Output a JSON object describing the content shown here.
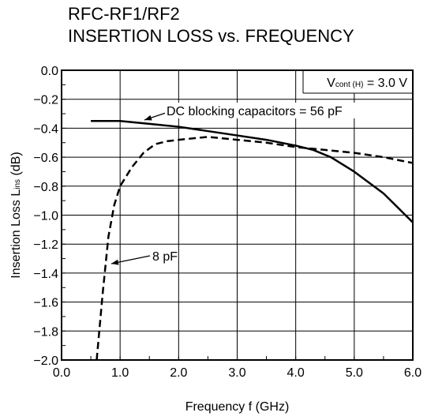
{
  "chart_data": {
    "type": "line",
    "title": "RFC-RF1/RF2",
    "subtitle": "INSERTION LOSS vs. FREQUENCY",
    "xlabel": "Frequency  f (GHz)",
    "ylabel": {
      "main": "Insertion Loss  L",
      "sub": "ins",
      "unit": " (dB)"
    },
    "xlim": [
      0.0,
      6.0
    ],
    "ylim": [
      -2.0,
      0.0
    ],
    "grid": true,
    "x_ticks": [
      "0.0",
      "1.0",
      "2.0",
      "3.0",
      "4.0",
      "5.0",
      "6.0"
    ],
    "y_ticks": [
      "0.0",
      "−0.2",
      "−0.4",
      "−0.6",
      "−0.8",
      "−1.0",
      "−1.2",
      "−1.4",
      "−1.6",
      "−1.8",
      "−2.0"
    ],
    "condition": {
      "main": "V",
      "sub": "cont (H)",
      "rest": " = 3.0 V"
    },
    "series": [
      {
        "name": "DC blocking capacitors = 56 pF",
        "style": "solid",
        "x": [
          0.5,
          1.0,
          1.5,
          2.0,
          2.5,
          3.0,
          3.5,
          4.0,
          4.3,
          4.6,
          5.0,
          5.5,
          6.0
        ],
        "y": [
          -0.35,
          -0.35,
          -0.37,
          -0.39,
          -0.42,
          -0.45,
          -0.48,
          -0.52,
          -0.55,
          -0.6,
          -0.7,
          -0.85,
          -1.05
        ]
      },
      {
        "name": "8 pF",
        "style": "dashed",
        "x": [
          0.6,
          0.7,
          0.8,
          0.9,
          1.0,
          1.2,
          1.4,
          1.6,
          1.8,
          2.0,
          2.5,
          3.0,
          3.5,
          4.0,
          4.5,
          5.0,
          5.5,
          6.0
        ],
        "y": [
          -2.0,
          -1.55,
          -1.15,
          -0.93,
          -0.8,
          -0.67,
          -0.57,
          -0.51,
          -0.49,
          -0.48,
          -0.46,
          -0.48,
          -0.5,
          -0.53,
          -0.55,
          -0.57,
          -0.6,
          -0.64
        ]
      }
    ]
  }
}
